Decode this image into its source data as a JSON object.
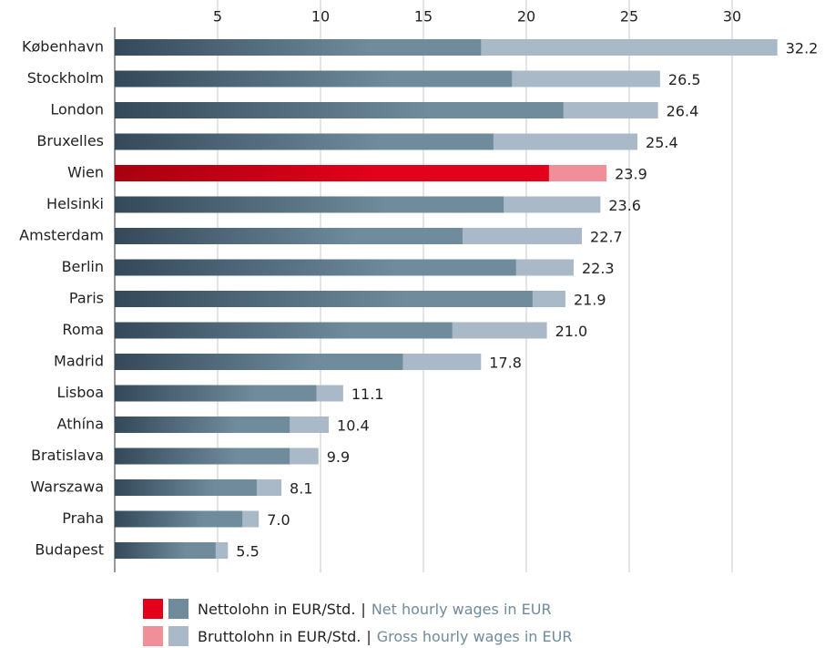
{
  "chart_data": {
    "type": "bar",
    "orientation": "horizontal",
    "overlap": true,
    "categories": [
      "København",
      "Stockholm",
      "London",
      "Bruxelles",
      "Wien",
      "Helsinki",
      "Amsterdam",
      "Berlin",
      "Paris",
      "Roma",
      "Madrid",
      "Lisboa",
      "Athína",
      "Bratislava",
      "Warszawa",
      "Praha",
      "Budapest"
    ],
    "highlight_index": 4,
    "series": [
      {
        "name": "Nettolohn in EUR/Std.",
        "name_en": "Net hourly wages in EUR",
        "color": "#6f8b9c",
        "highlight_color": "#e2001a",
        "values": [
          17.8,
          19.3,
          21.8,
          18.4,
          21.1,
          18.9,
          16.9,
          19.5,
          20.3,
          16.4,
          14.0,
          9.8,
          8.5,
          8.5,
          6.9,
          6.2,
          4.9
        ]
      },
      {
        "name": "Bruttolohn in EUR/Std.",
        "name_en": "Gross hourly wages in EUR",
        "color": "#a9b9c8",
        "highlight_color": "#f08e9a",
        "values": [
          32.2,
          26.5,
          26.4,
          25.4,
          23.9,
          23.6,
          22.7,
          22.3,
          21.9,
          21.0,
          17.8,
          11.1,
          10.4,
          9.9,
          8.1,
          7.0,
          5.5
        ],
        "value_labels": [
          "32.2",
          "26.5",
          "26.4",
          "25.4",
          "23.9",
          "23.6",
          "22.7",
          "22.3",
          "21.9",
          "21.0",
          "17.8",
          "11.1",
          "10.4",
          "9.9",
          "8.1",
          "7.0",
          "5.5"
        ]
      }
    ],
    "legend_separator": "|",
    "xlim": [
      0,
      35
    ],
    "xticks": [
      5,
      10,
      15,
      20,
      25,
      30
    ],
    "grid": true
  }
}
